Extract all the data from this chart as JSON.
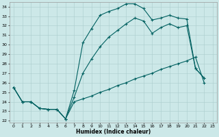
{
  "title": "",
  "xlabel": "Humidex (Indice chaleur)",
  "bg_color": "#cce8e8",
  "line_color": "#006060",
  "grid_color": "#aacccc",
  "xlim": [
    -0.5,
    23.5
  ],
  "ylim": [
    21.8,
    34.5
  ],
  "yticks": [
    22,
    23,
    24,
    25,
    26,
    27,
    28,
    29,
    30,
    31,
    32,
    33,
    34
  ],
  "xticks": [
    0,
    1,
    2,
    3,
    4,
    5,
    6,
    7,
    8,
    9,
    10,
    11,
    12,
    13,
    14,
    15,
    16,
    17,
    18,
    19,
    20,
    21,
    22,
    23
  ],
  "line1_x": [
    0,
    1,
    2,
    3,
    4,
    5,
    6,
    7,
    8,
    9,
    10,
    11,
    12,
    13,
    14,
    15,
    16,
    17,
    18,
    19,
    20,
    21,
    22
  ],
  "line1_y": [
    25.5,
    24.0,
    24.0,
    23.3,
    23.2,
    23.2,
    22.2,
    25.2,
    30.2,
    31.7,
    33.1,
    33.5,
    33.8,
    34.3,
    34.3,
    33.8,
    32.6,
    32.8,
    33.1,
    32.8,
    32.7,
    27.5,
    26.5
  ],
  "line2_x": [
    0,
    1,
    2,
    3,
    4,
    5,
    6,
    7,
    8,
    9,
    10,
    11,
    12,
    13,
    14,
    15,
    16,
    17,
    18,
    19,
    20,
    21,
    22
  ],
  "line2_y": [
    25.5,
    24.0,
    24.0,
    23.3,
    23.2,
    23.2,
    22.2,
    24.5,
    27.0,
    28.5,
    29.8,
    30.8,
    31.5,
    32.2,
    32.8,
    32.5,
    31.2,
    31.8,
    32.2,
    31.8,
    32.0,
    27.5,
    26.5
  ],
  "line3_x": [
    0,
    1,
    2,
    3,
    4,
    5,
    6,
    7,
    8,
    9,
    10,
    11,
    12,
    13,
    14,
    15,
    16,
    17,
    18,
    19,
    20,
    21,
    22
  ],
  "line3_y": [
    25.5,
    24.0,
    24.0,
    23.3,
    23.2,
    23.2,
    22.2,
    24.0,
    24.3,
    24.6,
    25.0,
    25.3,
    25.7,
    26.0,
    26.4,
    26.7,
    27.0,
    27.4,
    27.7,
    28.0,
    28.3,
    28.7,
    26.0
  ]
}
